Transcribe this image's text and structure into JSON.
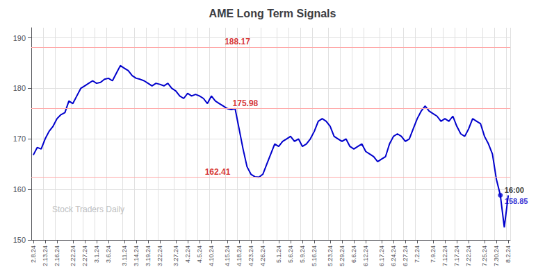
{
  "chart_data": {
    "type": "line",
    "title": "AME Long Term Signals",
    "categories": [
      "2.8.24",
      null,
      null,
      "2.13.24",
      null,
      null,
      "2.16.24",
      null,
      null,
      null,
      "2.22.24",
      null,
      null,
      "2.27.24",
      null,
      null,
      "3.1.24",
      null,
      null,
      "3.6.24",
      null,
      null,
      null,
      "3.11.24",
      null,
      null,
      "3.14.24",
      null,
      null,
      "3.19.24",
      null,
      null,
      "3.22.24",
      null,
      null,
      null,
      "3.27.24",
      null,
      null,
      "4.2.24",
      null,
      null,
      "4.5.24",
      null,
      null,
      "4.10.24",
      null,
      null,
      null,
      "4.15.24",
      null,
      null,
      "4.18.24",
      null,
      null,
      "4.23.24",
      null,
      null,
      "4.26.24",
      null,
      null,
      null,
      "5.1.24",
      null,
      null,
      "5.6.24",
      null,
      null,
      "5.9.24",
      null,
      null,
      "5.16.24",
      null,
      null,
      null,
      "5.23.24",
      null,
      null,
      "5.29.24",
      null,
      null,
      "6.6.24",
      null,
      null,
      "6.12.24",
      null,
      null,
      null,
      "6.17.24",
      null,
      null,
      "6.24.24",
      null,
      null,
      "6.27.24",
      null,
      null,
      "7.2.24",
      null,
      null,
      null,
      "7.9.24",
      null,
      null,
      "7.12.24",
      null,
      null,
      "7.17.24",
      null,
      null,
      "7.22.24",
      null,
      null,
      null,
      "7.25.24",
      null,
      null,
      "7.30.24",
      null,
      null,
      "8.2.24"
    ],
    "values": [
      166.8,
      168.3,
      168.0,
      170.0,
      171.5,
      172.5,
      174.0,
      174.8,
      175.2,
      177.5,
      177.0,
      178.5,
      180.0,
      180.5,
      181.0,
      181.5,
      181.0,
      181.2,
      181.8,
      182.0,
      181.5,
      183.0,
      184.5,
      184.0,
      183.5,
      182.5,
      182.0,
      181.8,
      181.5,
      181.0,
      180.5,
      181.0,
      180.8,
      180.5,
      181.0,
      180.0,
      179.5,
      178.5,
      178.0,
      179.0,
      178.5,
      178.8,
      178.5,
      178.0,
      177.0,
      178.5,
      177.5,
      177.0,
      176.5,
      176.0,
      175.8,
      175.98,
      172.0,
      168.0,
      164.5,
      163.0,
      162.5,
      162.41,
      163.0,
      165.0,
      167.0,
      169.0,
      168.5,
      169.5,
      170.0,
      170.5,
      169.5,
      170.0,
      168.5,
      169.0,
      170.0,
      171.5,
      173.5,
      174.0,
      173.5,
      172.5,
      170.5,
      170.0,
      169.5,
      170.0,
      168.5,
      168.0,
      168.5,
      169.0,
      167.5,
      167.0,
      166.5,
      165.5,
      166.0,
      166.5,
      169.0,
      170.5,
      171.0,
      170.5,
      169.5,
      170.0,
      172.0,
      174.0,
      175.5,
      176.5,
      175.5,
      175.0,
      174.5,
      173.5,
      174.0,
      173.5,
      174.5,
      172.5,
      171.0,
      170.5,
      172.0,
      174.0,
      173.5,
      173.0,
      170.5,
      169.0,
      167.0,
      162.0,
      158.85,
      152.5,
      158.85
    ],
    "color": "#0000cc",
    "ylim": [
      150,
      192
    ],
    "yticks": [
      150,
      160,
      170,
      180,
      190
    ],
    "grid": true,
    "hlines": {
      "values": [
        188.17,
        175.98,
        162.41
      ],
      "color": "#ffaaaa"
    },
    "highlight": {
      "x": 118,
      "y": 158.85,
      "color": "#0000cc"
    },
    "annotations": [
      {
        "text": "188.17",
        "x": 48,
        "y": 188.17,
        "color": "#cc0000",
        "position": "above"
      },
      {
        "text": "175.98",
        "x": 50,
        "y": 175.98,
        "color": "#cc0000",
        "position": "above"
      },
      {
        "text": "162.41",
        "x": 43,
        "y": 162.41,
        "color": "#cc0000",
        "position": "above"
      },
      {
        "text": "16:00",
        "x": 118,
        "y": 158.85,
        "color": "#000000",
        "position": "above"
      },
      {
        "text": "158.85",
        "x": 118,
        "y": 158.85,
        "color": "#0000cc",
        "position": "below"
      }
    ],
    "watermark": "Stock Traders Daily"
  }
}
